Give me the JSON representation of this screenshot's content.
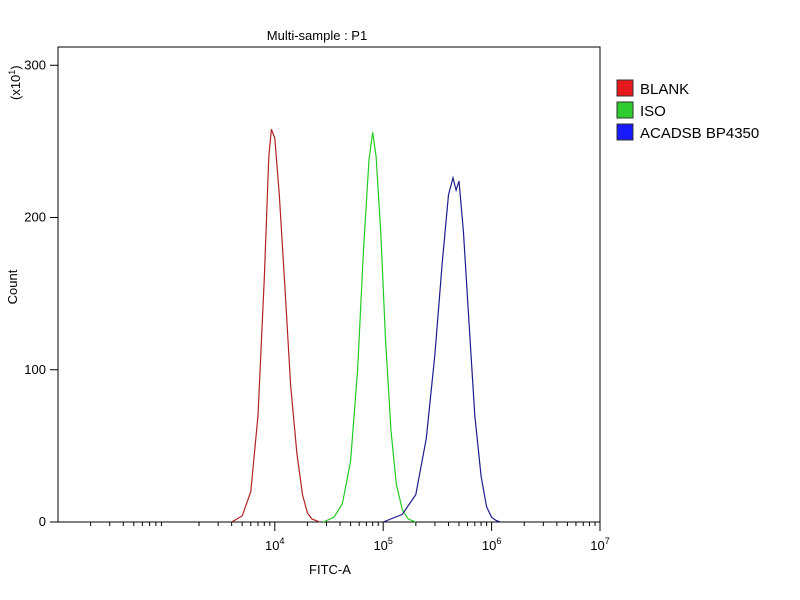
{
  "chart_data": {
    "type": "line",
    "title": "Multi-sample : P1",
    "xlabel": "FITC-A",
    "ylabel": "Count",
    "y_multiplier": {
      "base": "(x10",
      "exp": "1",
      "close": ")"
    },
    "x_scale": "log",
    "xlim": [
      100,
      10000000
    ],
    "ylim": [
      0,
      312
    ],
    "x_ticks": [
      {
        "base": "10",
        "exp": "4",
        "value": 10000
      },
      {
        "base": "10",
        "exp": "5",
        "value": 100000
      },
      {
        "base": "10",
        "exp": "6",
        "value": 1000000
      },
      {
        "base": "10",
        "exp": "7",
        "value": 10000000
      }
    ],
    "y_ticks": [
      "0",
      "100",
      "200",
      "300"
    ],
    "y_tick_values": [
      0,
      100,
      200,
      300
    ],
    "legend_position": "right",
    "grid": false,
    "series": [
      {
        "name": "BLANK",
        "color": "#b22222",
        "swatch": "#e41a1c",
        "x": [
          4000,
          5000,
          6000,
          7000,
          8000,
          8800,
          9300,
          10000,
          11000,
          12500,
          14000,
          16000,
          18000,
          20000,
          22000,
          24000,
          26000
        ],
        "y": [
          0,
          4,
          20,
          70,
          160,
          240,
          258,
          252,
          215,
          150,
          90,
          45,
          18,
          6,
          2,
          1,
          0
        ]
      },
      {
        "name": "ISO",
        "color": "#22cc22",
        "swatch": "#2ecc2e",
        "x": [
          28000,
          35000,
          42000,
          50000,
          58000,
          66000,
          74000,
          80000,
          86000,
          95000,
          105000,
          118000,
          132000,
          150000,
          170000,
          200000
        ],
        "y": [
          0,
          3,
          12,
          40,
          100,
          180,
          238,
          256,
          240,
          190,
          120,
          60,
          25,
          8,
          2,
          0
        ]
      },
      {
        "name": "ACADSB BP4350",
        "color": "#1c1c8c",
        "swatch": "#1a1aff",
        "x": [
          100000,
          150000,
          200000,
          250000,
          300000,
          350000,
          400000,
          440000,
          470000,
          500000,
          550000,
          620000,
          700000,
          800000,
          900000,
          1000000,
          1100000,
          1200000
        ],
        "y": [
          0,
          5,
          18,
          55,
          110,
          170,
          215,
          226,
          218,
          224,
          190,
          130,
          70,
          30,
          10,
          3,
          1,
          0
        ]
      }
    ]
  }
}
